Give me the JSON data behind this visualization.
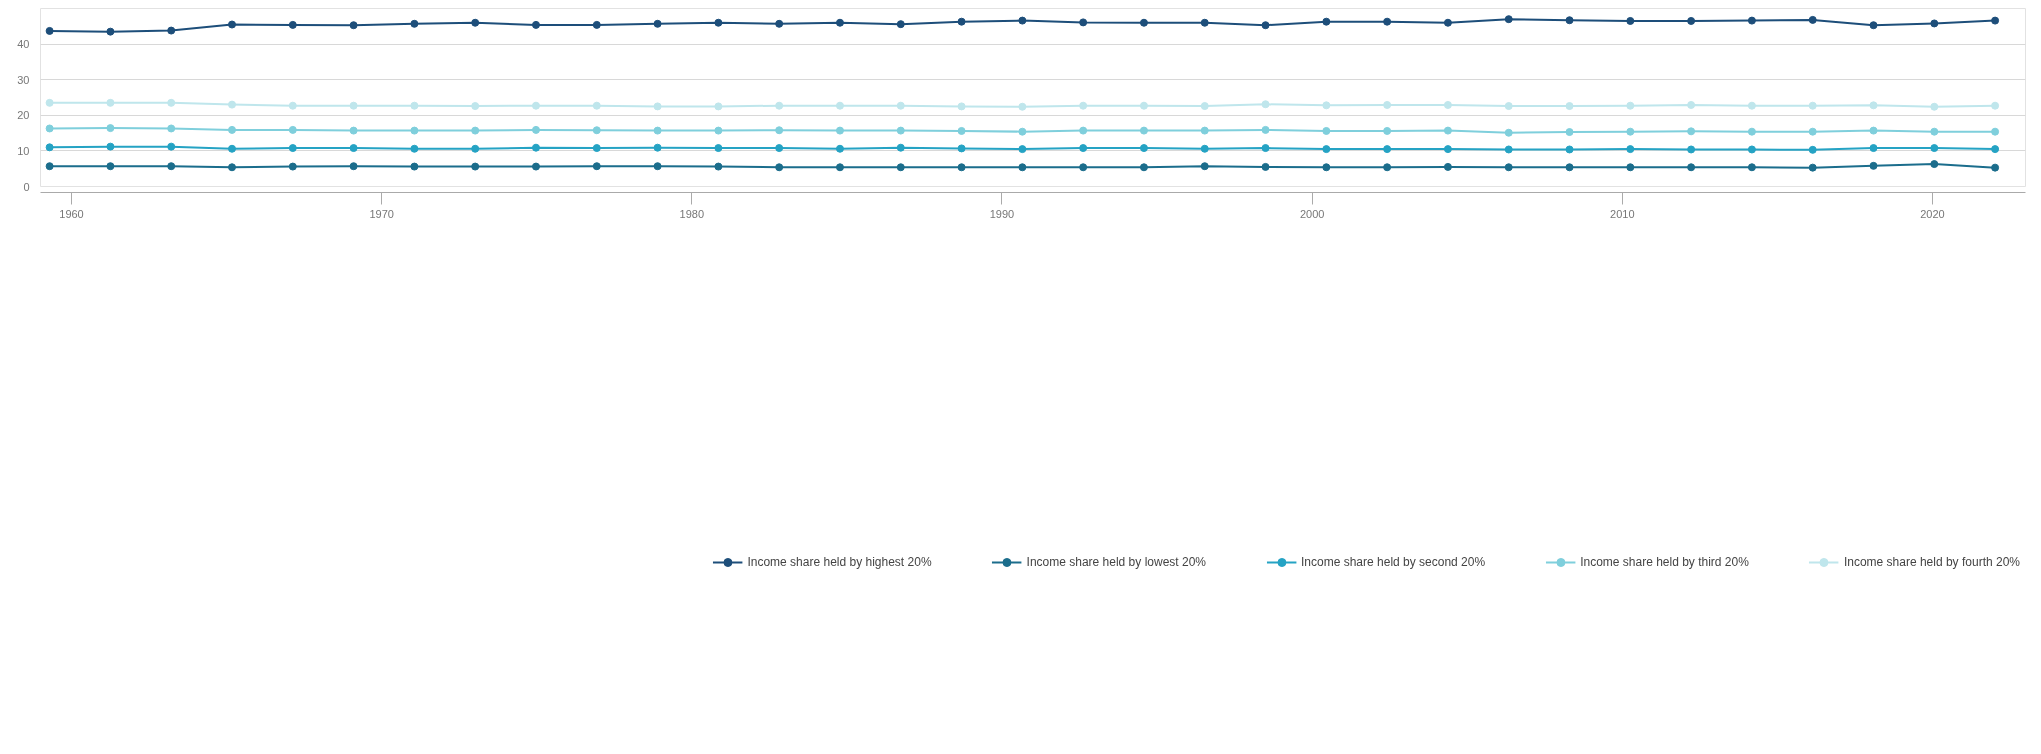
{
  "chart_data": {
    "type": "line",
    "categories": [
      null,
      null,
      null,
      null,
      null,
      null,
      null,
      null,
      null,
      null,
      null,
      null,
      null,
      null,
      null,
      null,
      null,
      null,
      null,
      null,
      null,
      null,
      null,
      null,
      null,
      null,
      null,
      null,
      null,
      null,
      null,
      null,
      null
    ],
    "ylim": [
      0,
      50
    ],
    "yticks": [
      0,
      10,
      20,
      30,
      40,
      {
        "value": 50,
        "label": null
      }
    ],
    "grid": "y",
    "legend": "bottom",
    "marker": "circle",
    "line_style": "solid",
    "x2lim": [
      1959,
      2023
    ],
    "x2ticks": [
      1960,
      1970,
      1980,
      1990,
      2000,
      2010,
      2020
    ],
    "series": [
      {
        "name": "Income share held by highest 20%",
        "color": "#1d4e7a",
        "values": [
          43.7,
          43.5,
          43.8,
          45.5,
          45.4,
          45.3,
          45.7,
          46.0,
          45.4,
          45.4,
          45.7,
          46.0,
          45.7,
          46.0,
          45.6,
          46.3,
          46.6,
          46.1,
          46.0,
          46.0,
          45.3,
          46.3,
          46.3,
          46.0,
          47.0,
          46.7,
          46.5,
          46.5,
          46.6,
          46.8,
          45.3,
          45.8,
          46.6
        ]
      },
      {
        "name": "Income share held by lowest 20%",
        "color": "#1b6d8c",
        "values": [
          5.7,
          5.7,
          5.7,
          5.4,
          5.6,
          5.7,
          5.6,
          5.6,
          5.6,
          5.7,
          5.7,
          5.6,
          5.4,
          5.4,
          5.4,
          5.4,
          5.4,
          5.4,
          5.4,
          5.7,
          5.5,
          5.4,
          5.4,
          5.5,
          5.4,
          5.4,
          5.4,
          5.4,
          5.4,
          5.3,
          5.8,
          6.3,
          5.3
        ]
      },
      {
        "name": "Income share held by second 20%",
        "color": "#25a3c4",
        "values": [
          11.0,
          11.2,
          11.2,
          10.6,
          10.8,
          10.8,
          10.6,
          10.6,
          10.9,
          10.8,
          10.9,
          10.8,
          10.8,
          10.6,
          10.9,
          10.7,
          10.5,
          10.8,
          10.8,
          10.6,
          10.8,
          10.5,
          10.5,
          10.5,
          10.4,
          10.4,
          10.5,
          10.4,
          10.4,
          10.3,
          10.8,
          10.8,
          10.5
        ]
      },
      {
        "name": "Income share held by third 20%",
        "color": "#7fcfdc",
        "values": [
          16.3,
          16.4,
          16.3,
          15.9,
          15.9,
          15.7,
          15.7,
          15.7,
          15.9,
          15.8,
          15.7,
          15.7,
          15.8,
          15.7,
          15.7,
          15.6,
          15.4,
          15.7,
          15.7,
          15.7,
          15.9,
          15.6,
          15.6,
          15.7,
          15.1,
          15.3,
          15.4,
          15.5,
          15.4,
          15.4,
          15.7,
          15.4,
          15.4
        ]
      },
      {
        "name": "Income share held by fourth 20%",
        "color": "#bfe6ec",
        "values": [
          23.5,
          23.5,
          23.5,
          23.0,
          22.7,
          22.7,
          22.7,
          22.6,
          22.7,
          22.7,
          22.5,
          22.5,
          22.7,
          22.7,
          22.7,
          22.5,
          22.4,
          22.7,
          22.7,
          22.6,
          23.1,
          22.8,
          22.9,
          22.9,
          22.6,
          22.6,
          22.7,
          22.9,
          22.7,
          22.7,
          22.8,
          22.4,
          22.7
        ]
      }
    ]
  }
}
